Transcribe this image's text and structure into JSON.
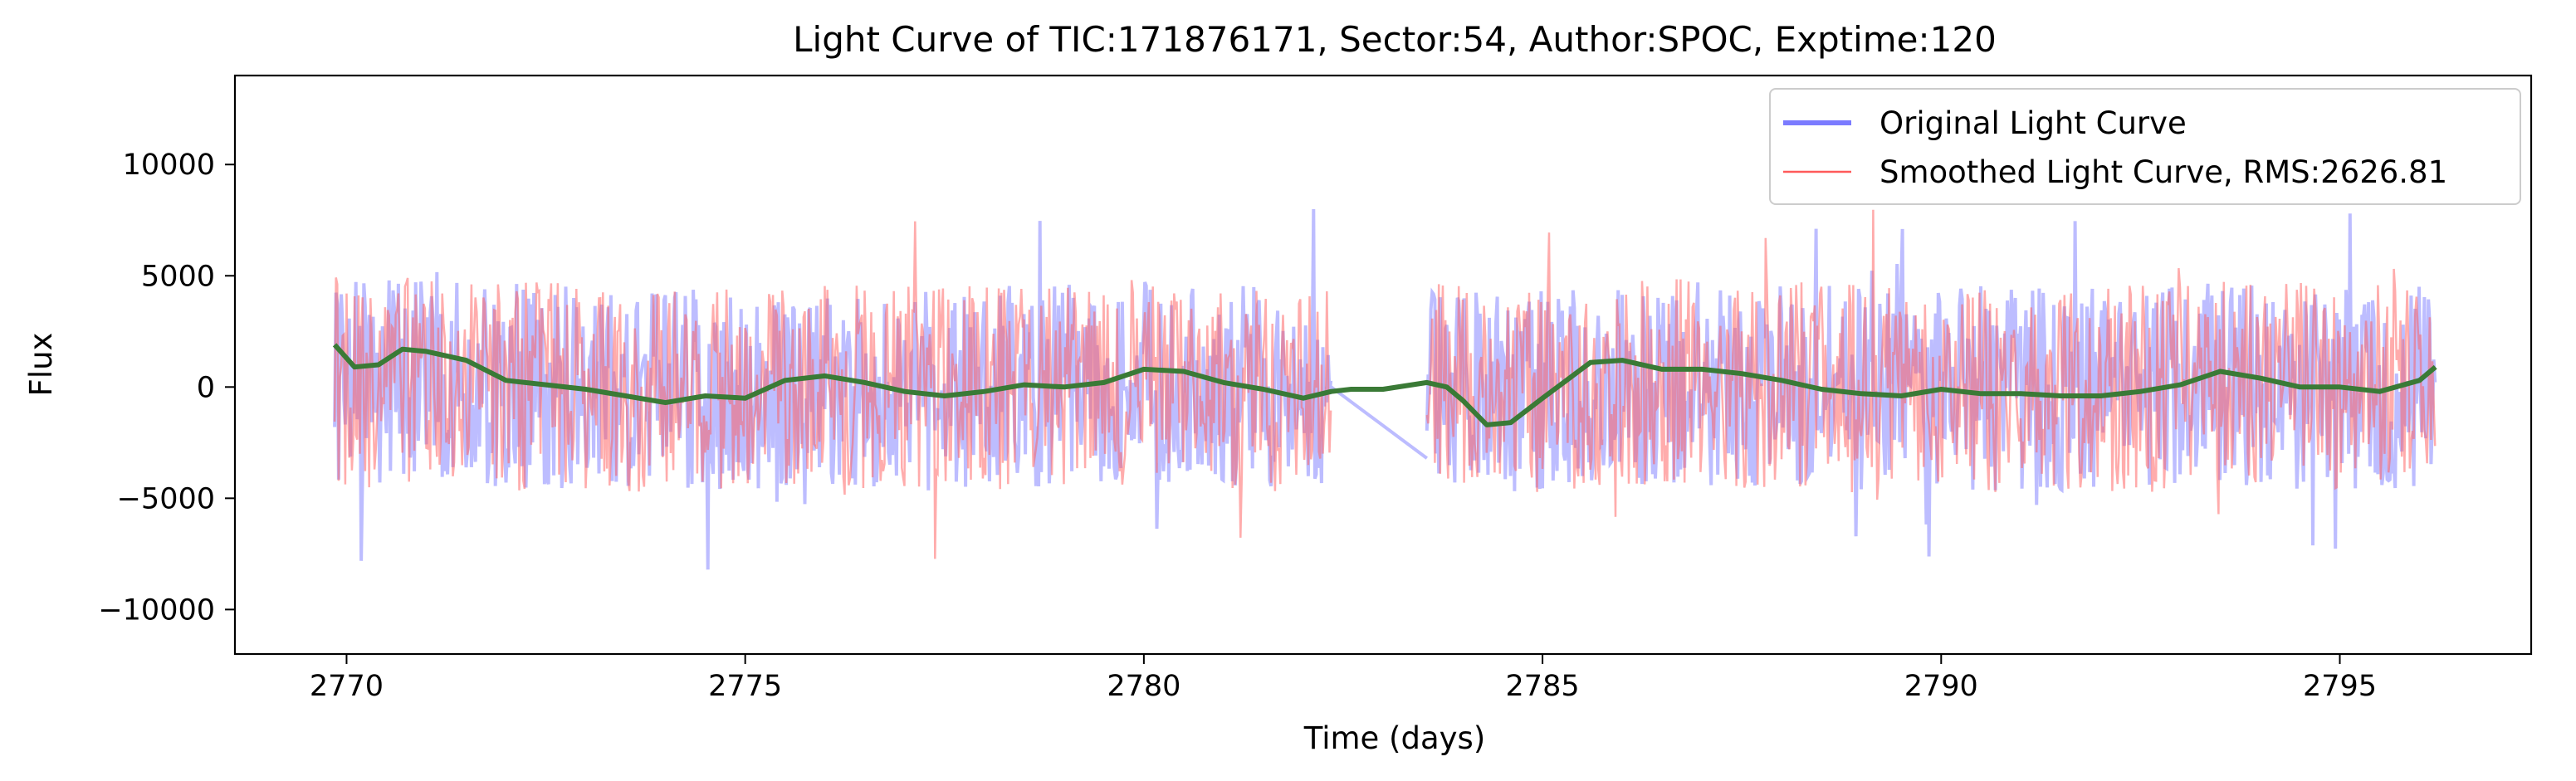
{
  "chart_data": {
    "type": "line",
    "title": "Light Curve of TIC:171876171, Sector:54, Author:SPOC, Exptime:120",
    "xlabel": "Time (days)",
    "ylabel": "Flux",
    "xlim": [
      2768.6,
      2797.4
    ],
    "ylim": [
      -12000,
      14000
    ],
    "xticks": [
      2770,
      2775,
      2780,
      2785,
      2790,
      2795
    ],
    "xtick_labels": [
      "2770",
      "2775",
      "2780",
      "2785",
      "2790",
      "2795"
    ],
    "yticks": [
      -10000,
      -5000,
      0,
      5000,
      10000
    ],
    "ytick_labels": [
      "−10000",
      "−5000",
      "0",
      "5000",
      "10000"
    ],
    "grid": false,
    "legend_position": "top-right",
    "segments": [
      [
        2769.85,
        2782.35
      ],
      [
        2783.55,
        2796.2
      ]
    ],
    "series": [
      {
        "name": "Original Light Curve",
        "color": "#7b7bff",
        "kind": "noisy flux, band approx -5000 to 6000, spikes to 12800 and -10800",
        "gap_bridge": [
          [
            2782.35,
            0
          ],
          [
            2783.55,
            -3200
          ]
        ]
      },
      {
        "name": "Smoothed Light Curve, RMS:2626.81",
        "color": "#ff5a5a",
        "kind": "noisy flux overlay, approx same band"
      },
      {
        "name": "",
        "color": "#3a7a36",
        "x": [
          2769.85,
          2770.1,
          2770.4,
          2770.7,
          2771.0,
          2771.5,
          2772.0,
          2772.5,
          2773.0,
          2773.5,
          2774.0,
          2774.5,
          2775.0,
          2775.5,
          2776.0,
          2776.5,
          2777.0,
          2777.5,
          2778.0,
          2778.5,
          2779.0,
          2779.5,
          2780.0,
          2780.5,
          2781.0,
          2781.5,
          2782.0,
          2782.35,
          2782.6,
          2783.0,
          2783.55,
          2783.8,
          2784.0,
          2784.3,
          2784.6,
          2785.0,
          2785.3,
          2785.6,
          2786.0,
          2786.5,
          2787.0,
          2787.5,
          2788.0,
          2788.5,
          2789.0,
          2789.5,
          2790.0,
          2790.5,
          2791.0,
          2791.5,
          2792.0,
          2792.5,
          2793.0,
          2793.5,
          2794.0,
          2794.5,
          2795.0,
          2795.5,
          2796.0,
          2796.2
        ],
        "y": [
          1900,
          900,
          1000,
          1700,
          1600,
          1200,
          300,
          100,
          -100,
          -400,
          -700,
          -400,
          -500,
          300,
          500,
          200,
          -200,
          -400,
          -200,
          100,
          0,
          200,
          800,
          700,
          200,
          -100,
          -500,
          -200,
          -100,
          -100,
          200,
          0,
          -600,
          -1700,
          -1600,
          -500,
          300,
          1100,
          1200,
          800,
          800,
          600,
          300,
          -100,
          -300,
          -400,
          -100,
          -300,
          -300,
          -400,
          -400,
          -200,
          100,
          700,
          400,
          0,
          0,
          -200,
          300,
          900
        ]
      }
    ]
  }
}
